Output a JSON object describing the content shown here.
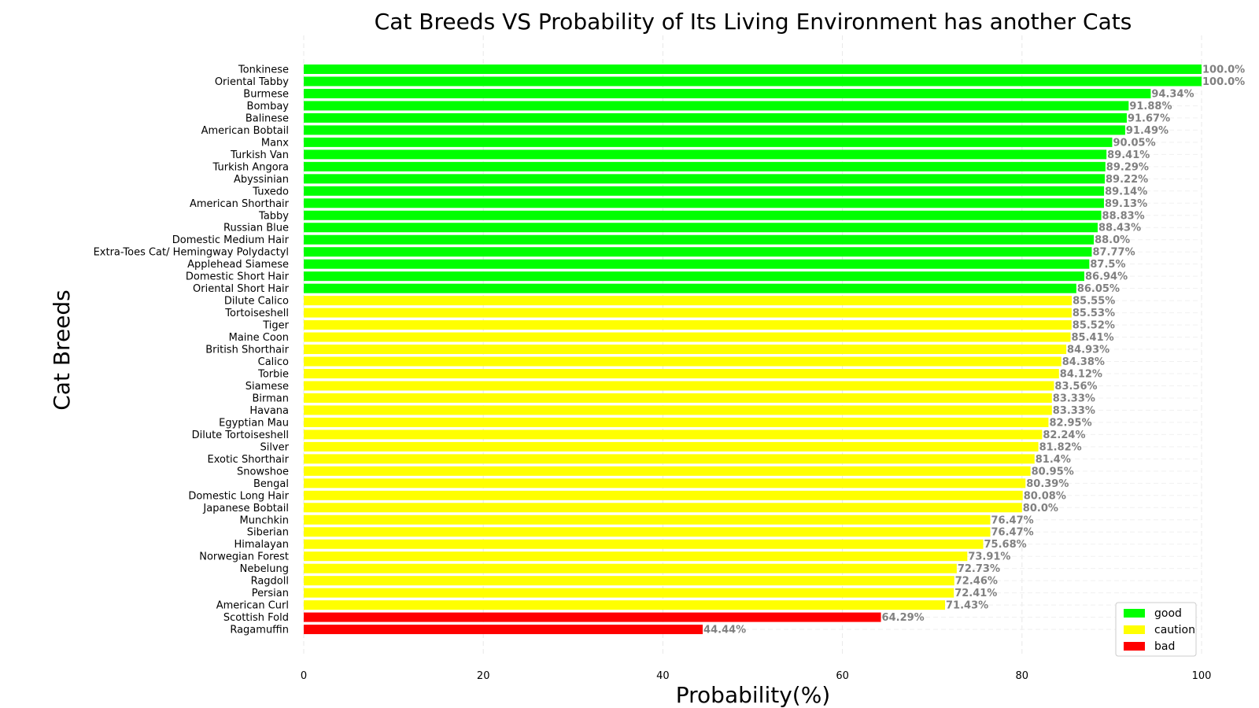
{
  "chart_data": {
    "type": "bar",
    "orientation": "horizontal",
    "title": "Cat Breeds VS Probability of Its Living Environment has another Cats",
    "xlabel": "Probability(%)",
    "ylabel": "Cat Breeds",
    "xlim": [
      0,
      100
    ],
    "xticks": [
      "0",
      "20",
      "40",
      "60",
      "80",
      "100"
    ],
    "grid": true,
    "legend_position": "bottom-right",
    "legend": [
      {
        "label": "good",
        "color": "#00ff00"
      },
      {
        "label": "caution",
        "color": "#ffff00"
      },
      {
        "label": "bad",
        "color": "#ff0000"
      }
    ],
    "colors": {
      "good": "#00ff00",
      "caution": "#ffff00",
      "bad": "#ff0000"
    },
    "bars": [
      {
        "category": "Tonkinese",
        "value": 100.0,
        "label": "100.0%",
        "group": "good"
      },
      {
        "category": "Oriental Tabby",
        "value": 100.0,
        "label": "100.0%",
        "group": "good"
      },
      {
        "category": "Burmese",
        "value": 94.34,
        "label": "94.34%",
        "group": "good"
      },
      {
        "category": "Bombay",
        "value": 91.88,
        "label": "91.88%",
        "group": "good"
      },
      {
        "category": "Balinese",
        "value": 91.67,
        "label": "91.67%",
        "group": "good"
      },
      {
        "category": "American Bobtail",
        "value": 91.49,
        "label": "91.49%",
        "group": "good"
      },
      {
        "category": "Manx",
        "value": 90.05,
        "label": "90.05%",
        "group": "good"
      },
      {
        "category": "Turkish Van",
        "value": 89.41,
        "label": "89.41%",
        "group": "good"
      },
      {
        "category": "Turkish Angora",
        "value": 89.29,
        "label": "89.29%",
        "group": "good"
      },
      {
        "category": "Abyssinian",
        "value": 89.22,
        "label": "89.22%",
        "group": "good"
      },
      {
        "category": "Tuxedo",
        "value": 89.14,
        "label": "89.14%",
        "group": "good"
      },
      {
        "category": "American Shorthair",
        "value": 89.13,
        "label": "89.13%",
        "group": "good"
      },
      {
        "category": "Tabby",
        "value": 88.83,
        "label": "88.83%",
        "group": "good"
      },
      {
        "category": "Russian Blue",
        "value": 88.43,
        "label": "88.43%",
        "group": "good"
      },
      {
        "category": "Domestic Medium Hair",
        "value": 88.0,
        "label": "88.0%",
        "group": "good"
      },
      {
        "category": "Extra-Toes Cat/ Hemingway Polydactyl",
        "value": 87.77,
        "label": "87.77%",
        "group": "good"
      },
      {
        "category": "Applehead Siamese",
        "value": 87.5,
        "label": "87.5%",
        "group": "good"
      },
      {
        "category": "Domestic Short Hair",
        "value": 86.94,
        "label": "86.94%",
        "group": "good"
      },
      {
        "category": "Oriental Short Hair",
        "value": 86.05,
        "label": "86.05%",
        "group": "good"
      },
      {
        "category": "Dilute Calico",
        "value": 85.55,
        "label": "85.55%",
        "group": "caution"
      },
      {
        "category": "Tortoiseshell",
        "value": 85.53,
        "label": "85.53%",
        "group": "caution"
      },
      {
        "category": "Tiger",
        "value": 85.52,
        "label": "85.52%",
        "group": "caution"
      },
      {
        "category": "Maine Coon",
        "value": 85.41,
        "label": "85.41%",
        "group": "caution"
      },
      {
        "category": "British Shorthair",
        "value": 84.93,
        "label": "84.93%",
        "group": "caution"
      },
      {
        "category": "Calico",
        "value": 84.38,
        "label": "84.38%",
        "group": "caution"
      },
      {
        "category": "Torbie",
        "value": 84.12,
        "label": "84.12%",
        "group": "caution"
      },
      {
        "category": "Siamese",
        "value": 83.56,
        "label": "83.56%",
        "group": "caution"
      },
      {
        "category": "Birman",
        "value": 83.33,
        "label": "83.33%",
        "group": "caution"
      },
      {
        "category": "Havana",
        "value": 83.33,
        "label": "83.33%",
        "group": "caution"
      },
      {
        "category": "Egyptian Mau",
        "value": 82.95,
        "label": "82.95%",
        "group": "caution"
      },
      {
        "category": "Dilute Tortoiseshell",
        "value": 82.24,
        "label": "82.24%",
        "group": "caution"
      },
      {
        "category": "Silver",
        "value": 81.82,
        "label": "81.82%",
        "group": "caution"
      },
      {
        "category": "Exotic Shorthair",
        "value": 81.4,
        "label": "81.4%",
        "group": "caution"
      },
      {
        "category": "Snowshoe",
        "value": 80.95,
        "label": "80.95%",
        "group": "caution"
      },
      {
        "category": "Bengal",
        "value": 80.39,
        "label": "80.39%",
        "group": "caution"
      },
      {
        "category": "Domestic Long Hair",
        "value": 80.08,
        "label": "80.08%",
        "group": "caution"
      },
      {
        "category": "Japanese Bobtail",
        "value": 80.0,
        "label": "80.0%",
        "group": "caution"
      },
      {
        "category": "Munchkin",
        "value": 76.47,
        "label": "76.47%",
        "group": "caution"
      },
      {
        "category": "Siberian",
        "value": 76.47,
        "label": "76.47%",
        "group": "caution"
      },
      {
        "category": "Himalayan",
        "value": 75.68,
        "label": "75.68%",
        "group": "caution"
      },
      {
        "category": "Norwegian Forest",
        "value": 73.91,
        "label": "73.91%",
        "group": "caution"
      },
      {
        "category": "Nebelung",
        "value": 72.73,
        "label": "72.73%",
        "group": "caution"
      },
      {
        "category": "Ragdoll",
        "value": 72.46,
        "label": "72.46%",
        "group": "caution"
      },
      {
        "category": "Persian",
        "value": 72.41,
        "label": "72.41%",
        "group": "caution"
      },
      {
        "category": "American Curl",
        "value": 71.43,
        "label": "71.43%",
        "group": "caution"
      },
      {
        "category": "Scottish Fold",
        "value": 64.29,
        "label": "64.29%",
        "group": "bad"
      },
      {
        "category": "Ragamuffin",
        "value": 44.44,
        "label": "44.44%",
        "group": "bad"
      }
    ]
  }
}
